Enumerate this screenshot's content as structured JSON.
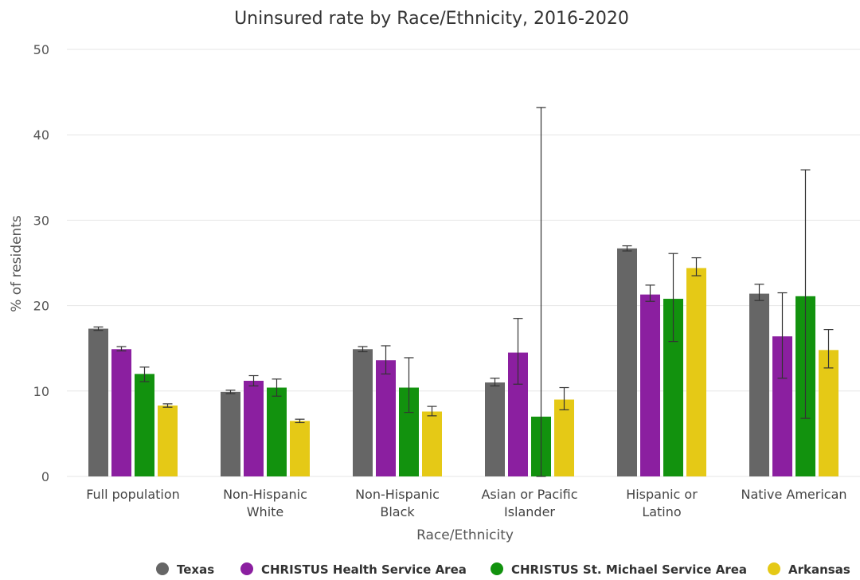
{
  "chart_data": {
    "type": "bar",
    "title": "Uninsured rate by Race/Ethnicity, 2016-2020",
    "xlabel": "Race/Ethnicity",
    "ylabel": "% of residents",
    "ylim": [
      0,
      50
    ],
    "yticks": [
      0,
      10,
      20,
      30,
      40,
      50
    ],
    "grid": true,
    "legend_position": "bottom",
    "categories": [
      [
        "Full population"
      ],
      [
        "Non-Hispanic",
        "White"
      ],
      [
        "Non-Hispanic",
        "Black"
      ],
      [
        "Asian or Pacific",
        "Islander"
      ],
      [
        "Hispanic or",
        "Latino"
      ],
      [
        "Native American"
      ]
    ],
    "series": [
      {
        "name": "Texas",
        "color": "#666666",
        "values": [
          17.3,
          9.9,
          14.9,
          11.0,
          26.7,
          21.4
        ],
        "error_low": [
          17.1,
          9.7,
          14.6,
          10.6,
          26.4,
          20.6
        ],
        "error_high": [
          17.5,
          10.1,
          15.2,
          11.5,
          27.0,
          22.5
        ]
      },
      {
        "name": "CHRISTUS Health Service Area",
        "color": "#8b1fa0",
        "values": [
          14.9,
          11.2,
          13.6,
          14.5,
          21.3,
          16.4
        ],
        "error_low": [
          14.7,
          10.6,
          12.0,
          10.8,
          20.5,
          11.5
        ],
        "error_high": [
          15.2,
          11.8,
          15.3,
          18.5,
          22.4,
          21.5
        ]
      },
      {
        "name": "CHRISTUS St. Michael Service Area",
        "color": "#12920e",
        "values": [
          12.0,
          10.4,
          10.4,
          7.0,
          20.8,
          21.1
        ],
        "error_low": [
          11.1,
          9.4,
          7.5,
          0.0,
          15.8,
          6.8
        ],
        "error_high": [
          12.8,
          11.4,
          13.9,
          43.2,
          26.1,
          35.9
        ]
      },
      {
        "name": "Arkansas",
        "color": "#e5c916",
        "values": [
          8.3,
          6.5,
          7.6,
          9.0,
          24.4,
          14.8
        ],
        "error_low": [
          8.1,
          6.3,
          7.1,
          7.8,
          23.5,
          12.7
        ],
        "error_high": [
          8.5,
          6.7,
          8.2,
          10.4,
          25.6,
          17.2
        ]
      }
    ]
  }
}
